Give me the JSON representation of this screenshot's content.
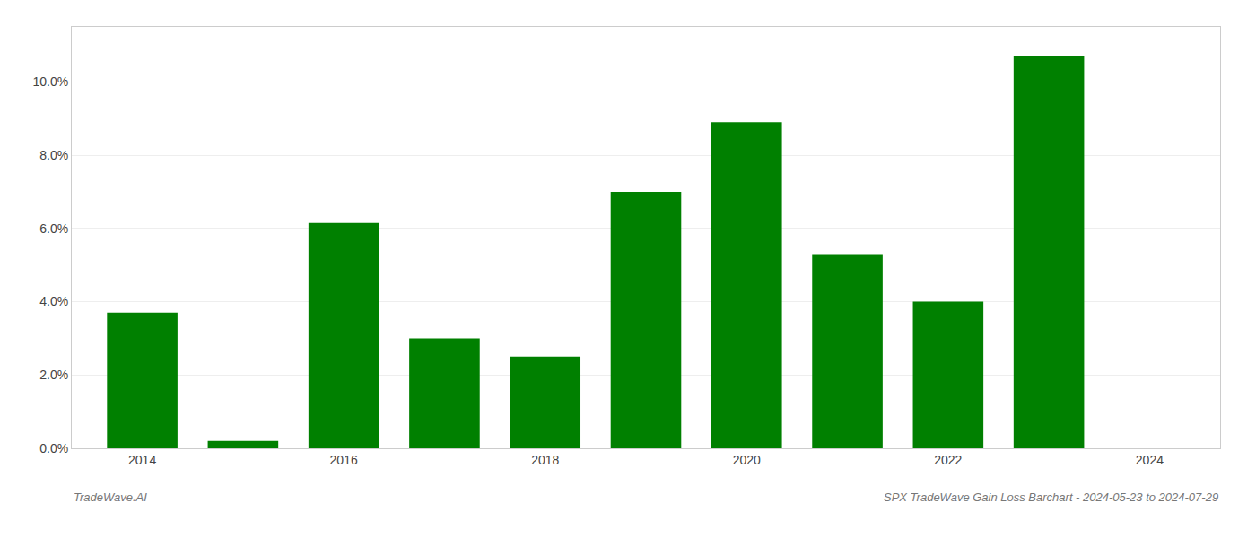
{
  "chart_data": {
    "type": "bar",
    "title": "SPX TradeWave Gain Loss Barchart - 2024-05-23 to 2024-07-29",
    "annotations": [
      "TradeWave.AI"
    ],
    "x": [
      2014,
      2015,
      2016,
      2017,
      2018,
      2019,
      2020,
      2021,
      2022,
      2023
    ],
    "values": [
      0.037,
      0.002,
      0.0615,
      0.03,
      0.025,
      0.07,
      0.089,
      0.053,
      0.04,
      0.107
    ],
    "color": "#008000",
    "xlim": [
      2013.3,
      2024.7
    ],
    "xticks": [
      2014,
      2016,
      2018,
      2020,
      2022,
      2024
    ],
    "ylim": [
      0.0,
      0.115
    ],
    "yticks": [
      {
        "value": 0.0,
        "label": "0.0%"
      },
      {
        "value": 0.02,
        "label": "2.0%"
      },
      {
        "value": 0.04,
        "label": "4.0%"
      },
      {
        "value": 0.06,
        "label": "6.0%"
      },
      {
        "value": 0.08,
        "label": "8.0%"
      },
      {
        "value": 0.1,
        "label": "10.0%"
      }
    ],
    "grid": true
  }
}
